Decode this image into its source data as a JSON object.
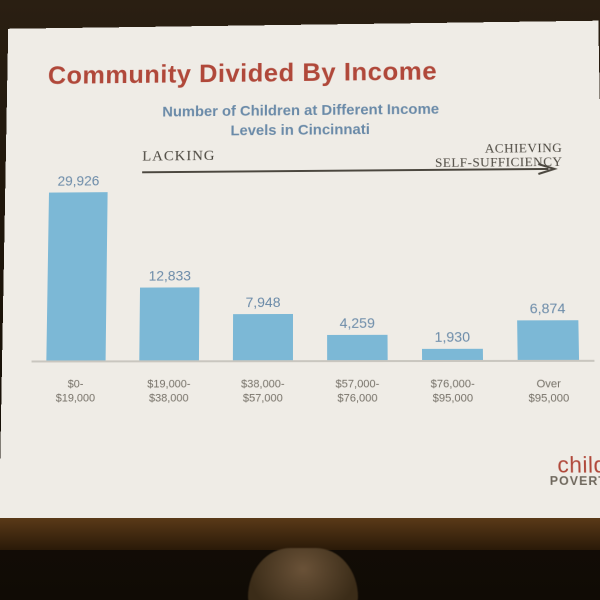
{
  "slide": {
    "title": "Community Divided By Income",
    "subtitle": "Number of Children at Different Income Levels in Cincinnati",
    "background_color": "#efece6",
    "title_color": "#b0483a",
    "subtitle_color": "#6a8aa8"
  },
  "chart": {
    "type": "bar",
    "categories": [
      "$0-\n$19,000",
      "$19,000-\n$38,000",
      "$38,000-\n$57,000",
      "$57,000-\n$76,000",
      "$76,000-\n$95,000",
      "Over\n$95,000"
    ],
    "values": [
      29926,
      12833,
      7948,
      4259,
      1930,
      6874
    ],
    "value_labels": [
      "29,926",
      "12,833",
      "7,948",
      "4,259",
      "1,930",
      "6,874"
    ],
    "bar_color": "#7cb8d6",
    "value_label_color": "#6a8aa8",
    "xlabel_color": "#757067",
    "ylim": [
      0,
      30000
    ],
    "bar_width": 0.72,
    "grid_color": "#c9c6bf",
    "value_fontsize": 14,
    "xlabel_fontsize": 11
  },
  "annotation": {
    "left_label": "LACKING",
    "right_label_line1": "ACHIEVING",
    "right_label_line2": "SELF-SUFFICIENCY",
    "color": "#4b473f"
  },
  "logo": {
    "line1": "child",
    "line2": "POVERT",
    "line1_color": "#b0483a",
    "line2_color": "#6e675c"
  }
}
